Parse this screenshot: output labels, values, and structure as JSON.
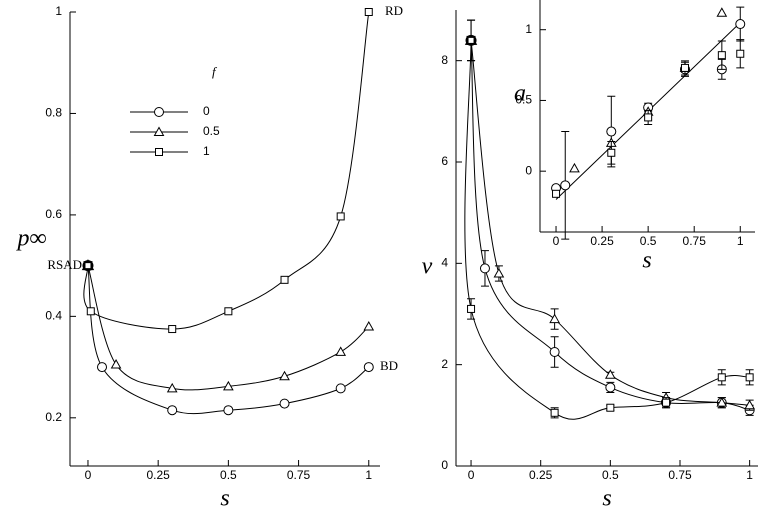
{
  "chart_data": [
    {
      "type": "line",
      "x_label": "s",
      "y_label": "p∞",
      "legend_title": "f",
      "xlim": [
        -0.064,
        1.04
      ],
      "ylim": [
        0.105,
        1.0
      ],
      "xticks": [
        0,
        0.25,
        0.5,
        0.75,
        1
      ],
      "yticks": [
        0.2,
        0.4,
        0.6,
        0.8,
        1
      ],
      "annotations": [
        "RSAD",
        "RD",
        "BD"
      ],
      "series": [
        {
          "name": "0",
          "marker": "circle",
          "color": "#000000",
          "x": [
            0,
            0.05,
            0.3,
            0.5,
            0.7,
            0.9,
            1
          ],
          "values": [
            0.5,
            0.3,
            0.215,
            0.215,
            0.228,
            0.258,
            0.3
          ]
        },
        {
          "name": "0.5",
          "marker": "triangle",
          "color": "#000000",
          "x": [
            0,
            0.1,
            0.3,
            0.5,
            0.7,
            0.9,
            1
          ],
          "values": [
            0.5,
            0.305,
            0.258,
            0.262,
            0.282,
            0.33,
            0.38
          ]
        },
        {
          "name": "1",
          "marker": "square",
          "color": "#000000",
          "x": [
            0,
            0.01,
            0.3,
            0.5,
            0.7,
            0.9,
            1
          ],
          "values": [
            0.5,
            0.41,
            0.375,
            0.41,
            0.472,
            0.597,
            1.0
          ]
        }
      ]
    },
    {
      "type": "line",
      "x_label": "s",
      "y_label": "ν",
      "xlim": [
        -0.054,
        1.03
      ],
      "ylim": [
        0,
        9
      ],
      "xticks": [
        0,
        0.25,
        0.5,
        0.75,
        1
      ],
      "yticks": [
        0,
        2,
        4,
        6,
        8
      ],
      "series": [
        {
          "marker": "circle",
          "color": "#000000",
          "x": [
            0,
            0.05,
            0.3,
            0.5,
            0.7,
            0.9,
            1
          ],
          "values": [
            8.4,
            3.9,
            2.25,
            1.55,
            1.25,
            1.25,
            1.1
          ],
          "errors": [
            0.4,
            0.35,
            0.3,
            0.1,
            0.1,
            0.1,
            0.1
          ]
        },
        {
          "marker": "triangle",
          "color": "#000000",
          "x": [
            0,
            0.1,
            0.3,
            0.5,
            0.7,
            0.9,
            1
          ],
          "values": [
            8.4,
            3.8,
            2.9,
            1.8,
            1.35,
            1.25,
            1.2
          ],
          "errors": [
            0.4,
            0.15,
            0.2,
            0.05,
            0.1,
            0.1,
            0.1
          ]
        },
        {
          "marker": "square",
          "color": "#000000",
          "x": [
            0,
            0,
            0.3,
            0.5,
            0.7,
            0.9,
            1
          ],
          "values": [
            8.4,
            3.1,
            1.05,
            1.15,
            1.25,
            1.75,
            1.75
          ],
          "errors": [
            0.4,
            0.2,
            0.1,
            0.05,
            0.1,
            0.15,
            0.15
          ]
        }
      ]
    },
    {
      "type": "scatter",
      "x_label": "s",
      "y_label": "a",
      "xlim": [
        -0.087,
        1.08
      ],
      "ylim": [
        -0.43,
        1.21
      ],
      "xticks": [
        0,
        0.25,
        0.5,
        0.75,
        1
      ],
      "yticks": [
        0,
        0.5,
        1
      ],
      "fit_line": {
        "x": [
          0,
          1
        ],
        "values": [
          -0.2,
          1.05
        ]
      },
      "series": [
        {
          "marker": "circle",
          "color": "#000000",
          "x": [
            0,
            0.05,
            0.3,
            0.5,
            0.7,
            0.9,
            1
          ],
          "values": [
            -0.12,
            -0.1,
            0.28,
            0.45,
            0.72,
            0.72,
            1.04
          ],
          "errors": [
            null,
            0.38,
            0.25,
            0.03,
            0.05,
            0.07,
            0.12
          ]
        },
        {
          "marker": "triangle",
          "color": "#000000",
          "x": [
            0.1,
            0.3,
            0.5,
            0.7,
            0.9
          ],
          "values": [
            0.02,
            0.2,
            0.42,
            0.73,
            1.12
          ],
          "errors": [
            null,
            null,
            null,
            null,
            null
          ]
        },
        {
          "marker": "square",
          "color": "#000000",
          "x": [
            0,
            0.3,
            0.5,
            0.7,
            0.9,
            1
          ],
          "values": [
            -0.16,
            0.13,
            0.38,
            0.73,
            0.82,
            0.83
          ],
          "errors": [
            null,
            0.08,
            0.05,
            0.05,
            0.1,
            0.1
          ]
        }
      ]
    }
  ]
}
